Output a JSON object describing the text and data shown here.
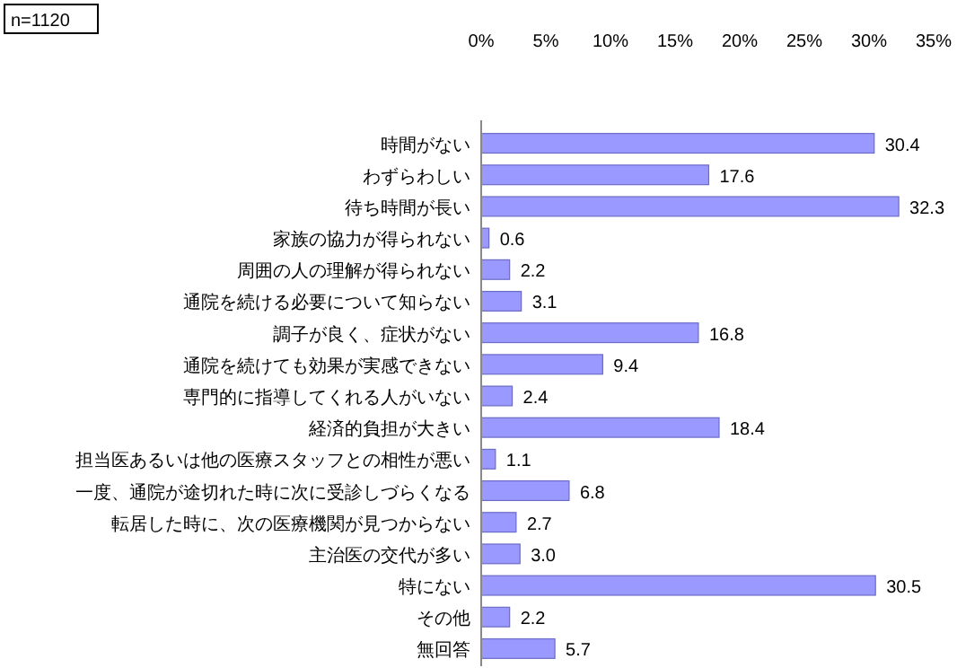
{
  "chart_data": {
    "type": "bar",
    "orientation": "horizontal",
    "annotations": [
      "n=1120"
    ],
    "categories": [
      "時間がない",
      "わずらわしい",
      "待ち時間が長い",
      "家族の協力が得られない",
      "周囲の人の理解が得られない",
      "通院を続ける必要について知らない",
      "調子が良く、症状がない",
      "通院を続けても効果が実感できない",
      "専門的に指導してくれる人がいない",
      "経済的負担が大きい",
      "担当医あるいは他の医療スタッフとの相性が悪い",
      "一度、通院が途切れた時に次に受診しづらくなる",
      "転居した時に、次の医療機関が見つからない",
      "主治医の交代が多い",
      "特にない",
      "その他",
      "無回答"
    ],
    "values": [
      30.4,
      17.6,
      32.3,
      0.6,
      2.2,
      3.1,
      16.8,
      9.4,
      2.4,
      18.4,
      1.1,
      6.8,
      2.7,
      3.0,
      30.5,
      2.2,
      5.7
    ],
    "value_labels": [
      "30.4",
      "17.6",
      "32.3",
      "0.6",
      "2.2",
      "3.1",
      "16.8",
      "9.4",
      "2.4",
      "18.4",
      "1.1",
      "6.8",
      "2.7",
      "3.0",
      "30.5",
      "2.2",
      "5.7"
    ],
    "color": "#9999ff",
    "xlim": [
      0,
      35
    ],
    "xticks": [
      {
        "value": 0,
        "label": "0%"
      },
      {
        "value": 5,
        "label": "5%"
      },
      {
        "value": 10,
        "label": "10%"
      },
      {
        "value": 15,
        "label": "15%"
      },
      {
        "value": 20,
        "label": "20%"
      },
      {
        "value": 25,
        "label": "25%"
      },
      {
        "value": 30,
        "label": "30%"
      },
      {
        "value": 35,
        "label": "35%"
      }
    ]
  }
}
